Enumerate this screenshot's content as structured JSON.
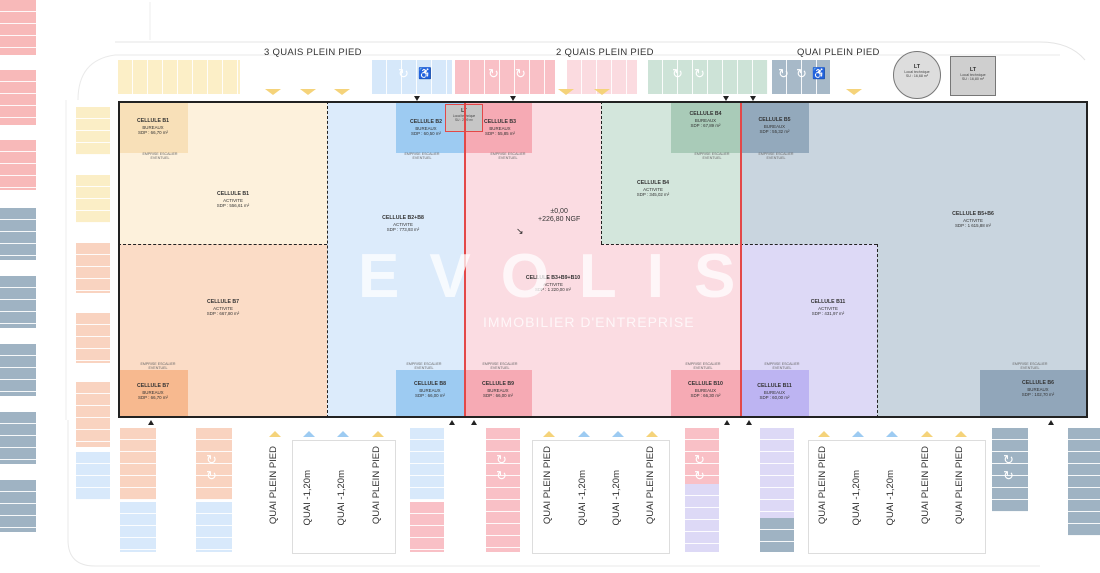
{
  "quai_titles": [
    "3 QUAIS PLEIN PIED",
    "2 QUAIS PLEIN PIED",
    "QUAI PLEIN PIED"
  ],
  "lt_symbols": [
    {
      "title": "LT",
      "line1": "Local technique",
      "line2": "SU : 16,68 m²"
    },
    {
      "title": "LT",
      "line1": "Local technique",
      "line2": "SU : 16,80 m²"
    }
  ],
  "cells": {
    "b1_bureaux": {
      "title": "CELLULE B1",
      "type": "BUREAUX",
      "sdp": "SDP : 66,70 m²"
    },
    "b1_activite": {
      "title": "CELLULE B1",
      "type": "ACTIVITE",
      "sdp": "SDP : 556,61 m²"
    },
    "b7_activite": {
      "title": "CELLULE B7",
      "type": "ACTIVITE",
      "sdp": "SDP : 667,80 m²"
    },
    "b7_bureaux": {
      "title": "CELLULE B7",
      "type": "BUREAUX",
      "sdp": "SDP : 66,70 m²"
    },
    "b2_bureaux": {
      "title": "CELLULE B2",
      "type": "BUREAUX",
      "sdp": "SDP : 60,50 m²"
    },
    "b2b8_activite": {
      "title": "CELLULE B2+B8",
      "type": "ACTIVITE",
      "sdp": "SDP : 773,93 m²"
    },
    "b8_bureaux": {
      "title": "CELLULE B8",
      "type": "BUREAUX",
      "sdp": "SDP : 66,00 m²"
    },
    "b3_bureaux": {
      "title": "CELLULE B3",
      "type": "BUREAUX",
      "sdp": "SDP : 55,85 m²"
    },
    "b3b9b10_activite": {
      "title": "CELLULE B3+B9+B10",
      "type": "ACTIVITE",
      "sdp": "SDP : 1 220,00 m²"
    },
    "b9_bureaux": {
      "title": "CELLULE B9",
      "type": "BUREAUX",
      "sdp": "SDP : 66,00 m²"
    },
    "b10_bureaux": {
      "title": "CELLULE B10",
      "type": "BUREAUX",
      "sdp": "SDP : 66,30 m²"
    },
    "b4_bureaux": {
      "title": "CELLULE B4",
      "type": "BUREAUX",
      "sdp": "SDP : 67,89 m²"
    },
    "b4_activite": {
      "title": "CELLULE B4",
      "type": "ACTIVITE",
      "sdp": "SDP : 345,02 m²"
    },
    "b5_bureaux": {
      "title": "CELLULE B5",
      "type": "BUREAUX",
      "sdp": "SDP : 55,32 m²"
    },
    "b5b6_activite": {
      "title": "CELLULE B5+B6",
      "type": "ACTIVITE",
      "sdp": "SDP : 1 615,88 m²"
    },
    "b6_bureaux": {
      "title": "CELLULE B6",
      "type": "BUREAUX",
      "sdp": "SDP : 102,70 m²"
    },
    "b11_activite": {
      "title": "CELLULE B11",
      "type": "ACTIVITE",
      "sdp": "SDP : 431,97 m²"
    },
    "b11_bureaux": {
      "title": "CELLULE B11",
      "type": "BUREAUX",
      "sdp": "SDP : 60,00 m²"
    }
  },
  "lt_small": {
    "title": "LT",
    "line1": "Local technique",
    "line2": "SU : 2,09 m²"
  },
  "emprise": [
    "EMPRISE ESCALIER",
    "EVENTUEL"
  ],
  "elevation": {
    "level": "±0,00",
    "ngf": "+226,80 NGF"
  },
  "watermark": {
    "brand": "EVOLIS",
    "subtitle": "IMMOBILIER D'ENTREPRISE"
  },
  "bottom_labels": [
    "QUAI PLEIN PIED",
    "QUAI -1,20m",
    "QUAI -1,20m",
    "QUAI PLEIN PIED",
    "QUAI PLEIN PIED",
    "QUAI -1,20m",
    "QUAI -1,20m",
    "QUAI PLEIN PIED",
    "QUAI PLEIN PIED",
    "QUAI -1,20m",
    "QUAI -1,20m",
    "QUAI PLEIN PIED",
    "QUAI PLEIN PIED"
  ],
  "colors": {
    "b1": "#fdf1dc",
    "b7": "#fbdcc6",
    "b2b8": "#dcebfb",
    "b3b9b10": "#fbdce2",
    "b4": "#d3e6dc",
    "b5b6": "#c9d5df",
    "b11": "#ddd9f6",
    "office_b1": "#f8e0b8",
    "office_b7": "#f7b98f",
    "office_b2": "#9dcbf2",
    "office_b3": "#f6aab4",
    "office_b4": "#a9cbb8",
    "office_b5": "#93a9bc",
    "office_b11": "#bdb4f2",
    "office_b6": "#91a6ba",
    "partition_red": "#e34848"
  }
}
